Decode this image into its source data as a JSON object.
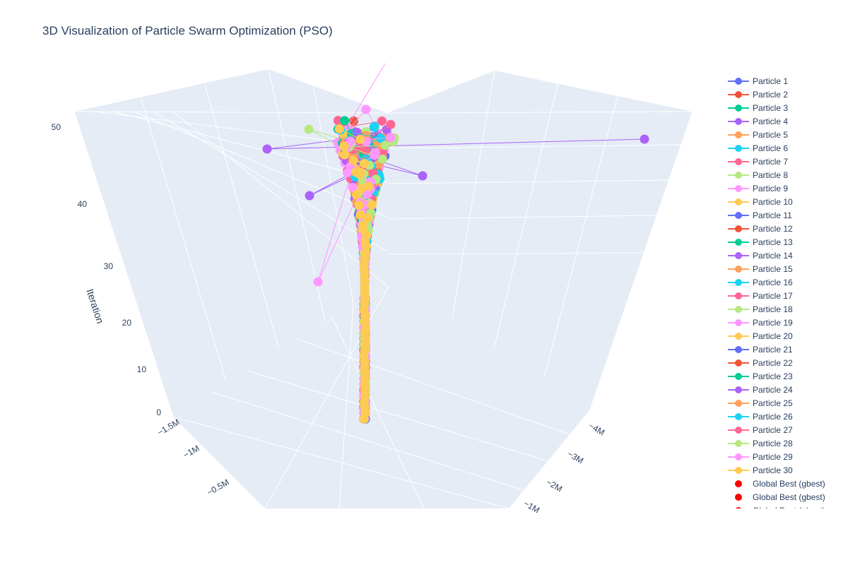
{
  "chart_data": {
    "type": "scatter3d",
    "title": "3D Visualization of Particle Swarm Optimization (PSO)",
    "zlabel": "Iteration",
    "zticks": [
      "0",
      "10",
      "20",
      "30",
      "40",
      "50"
    ],
    "xticks": [
      "−1.5M",
      "−1M",
      "−0.5M"
    ],
    "yticks": [
      "−4M",
      "−3M",
      "−2M",
      "−1M"
    ],
    "colors": [
      "#636efa",
      "#EF553B",
      "#00cc96",
      "#ab63fa",
      "#FFA15A",
      "#19d3f3",
      "#FF6692",
      "#B6E880",
      "#FF97FF",
      "#FECB52"
    ],
    "series": [
      {
        "name": "Particle 1"
      },
      {
        "name": "Particle 2"
      },
      {
        "name": "Particle 3"
      },
      {
        "name": "Particle 4"
      },
      {
        "name": "Particle 5"
      },
      {
        "name": "Particle 6"
      },
      {
        "name": "Particle 7"
      },
      {
        "name": "Particle 8"
      },
      {
        "name": "Particle 9"
      },
      {
        "name": "Particle 10"
      },
      {
        "name": "Particle 11"
      },
      {
        "name": "Particle 12"
      },
      {
        "name": "Particle 13"
      },
      {
        "name": "Particle 14"
      },
      {
        "name": "Particle 15"
      },
      {
        "name": "Particle 16"
      },
      {
        "name": "Particle 17"
      },
      {
        "name": "Particle 18"
      },
      {
        "name": "Particle 19"
      },
      {
        "name": "Particle 20"
      },
      {
        "name": "Particle 21"
      },
      {
        "name": "Particle 22"
      },
      {
        "name": "Particle 23"
      },
      {
        "name": "Particle 24"
      },
      {
        "name": "Particle 25"
      },
      {
        "name": "Particle 26"
      },
      {
        "name": "Particle 27"
      },
      {
        "name": "Particle 28"
      },
      {
        "name": "Particle 29"
      },
      {
        "name": "Particle 30"
      }
    ],
    "gbest_series": [
      {
        "name": "Global Best (gbest)",
        "color": "#ff0000"
      },
      {
        "name": "Global Best (gbest)",
        "color": "#ff0000"
      },
      {
        "name": "Global Best (gbest)",
        "color": "#ff0000"
      }
    ],
    "legend_position": "right"
  }
}
